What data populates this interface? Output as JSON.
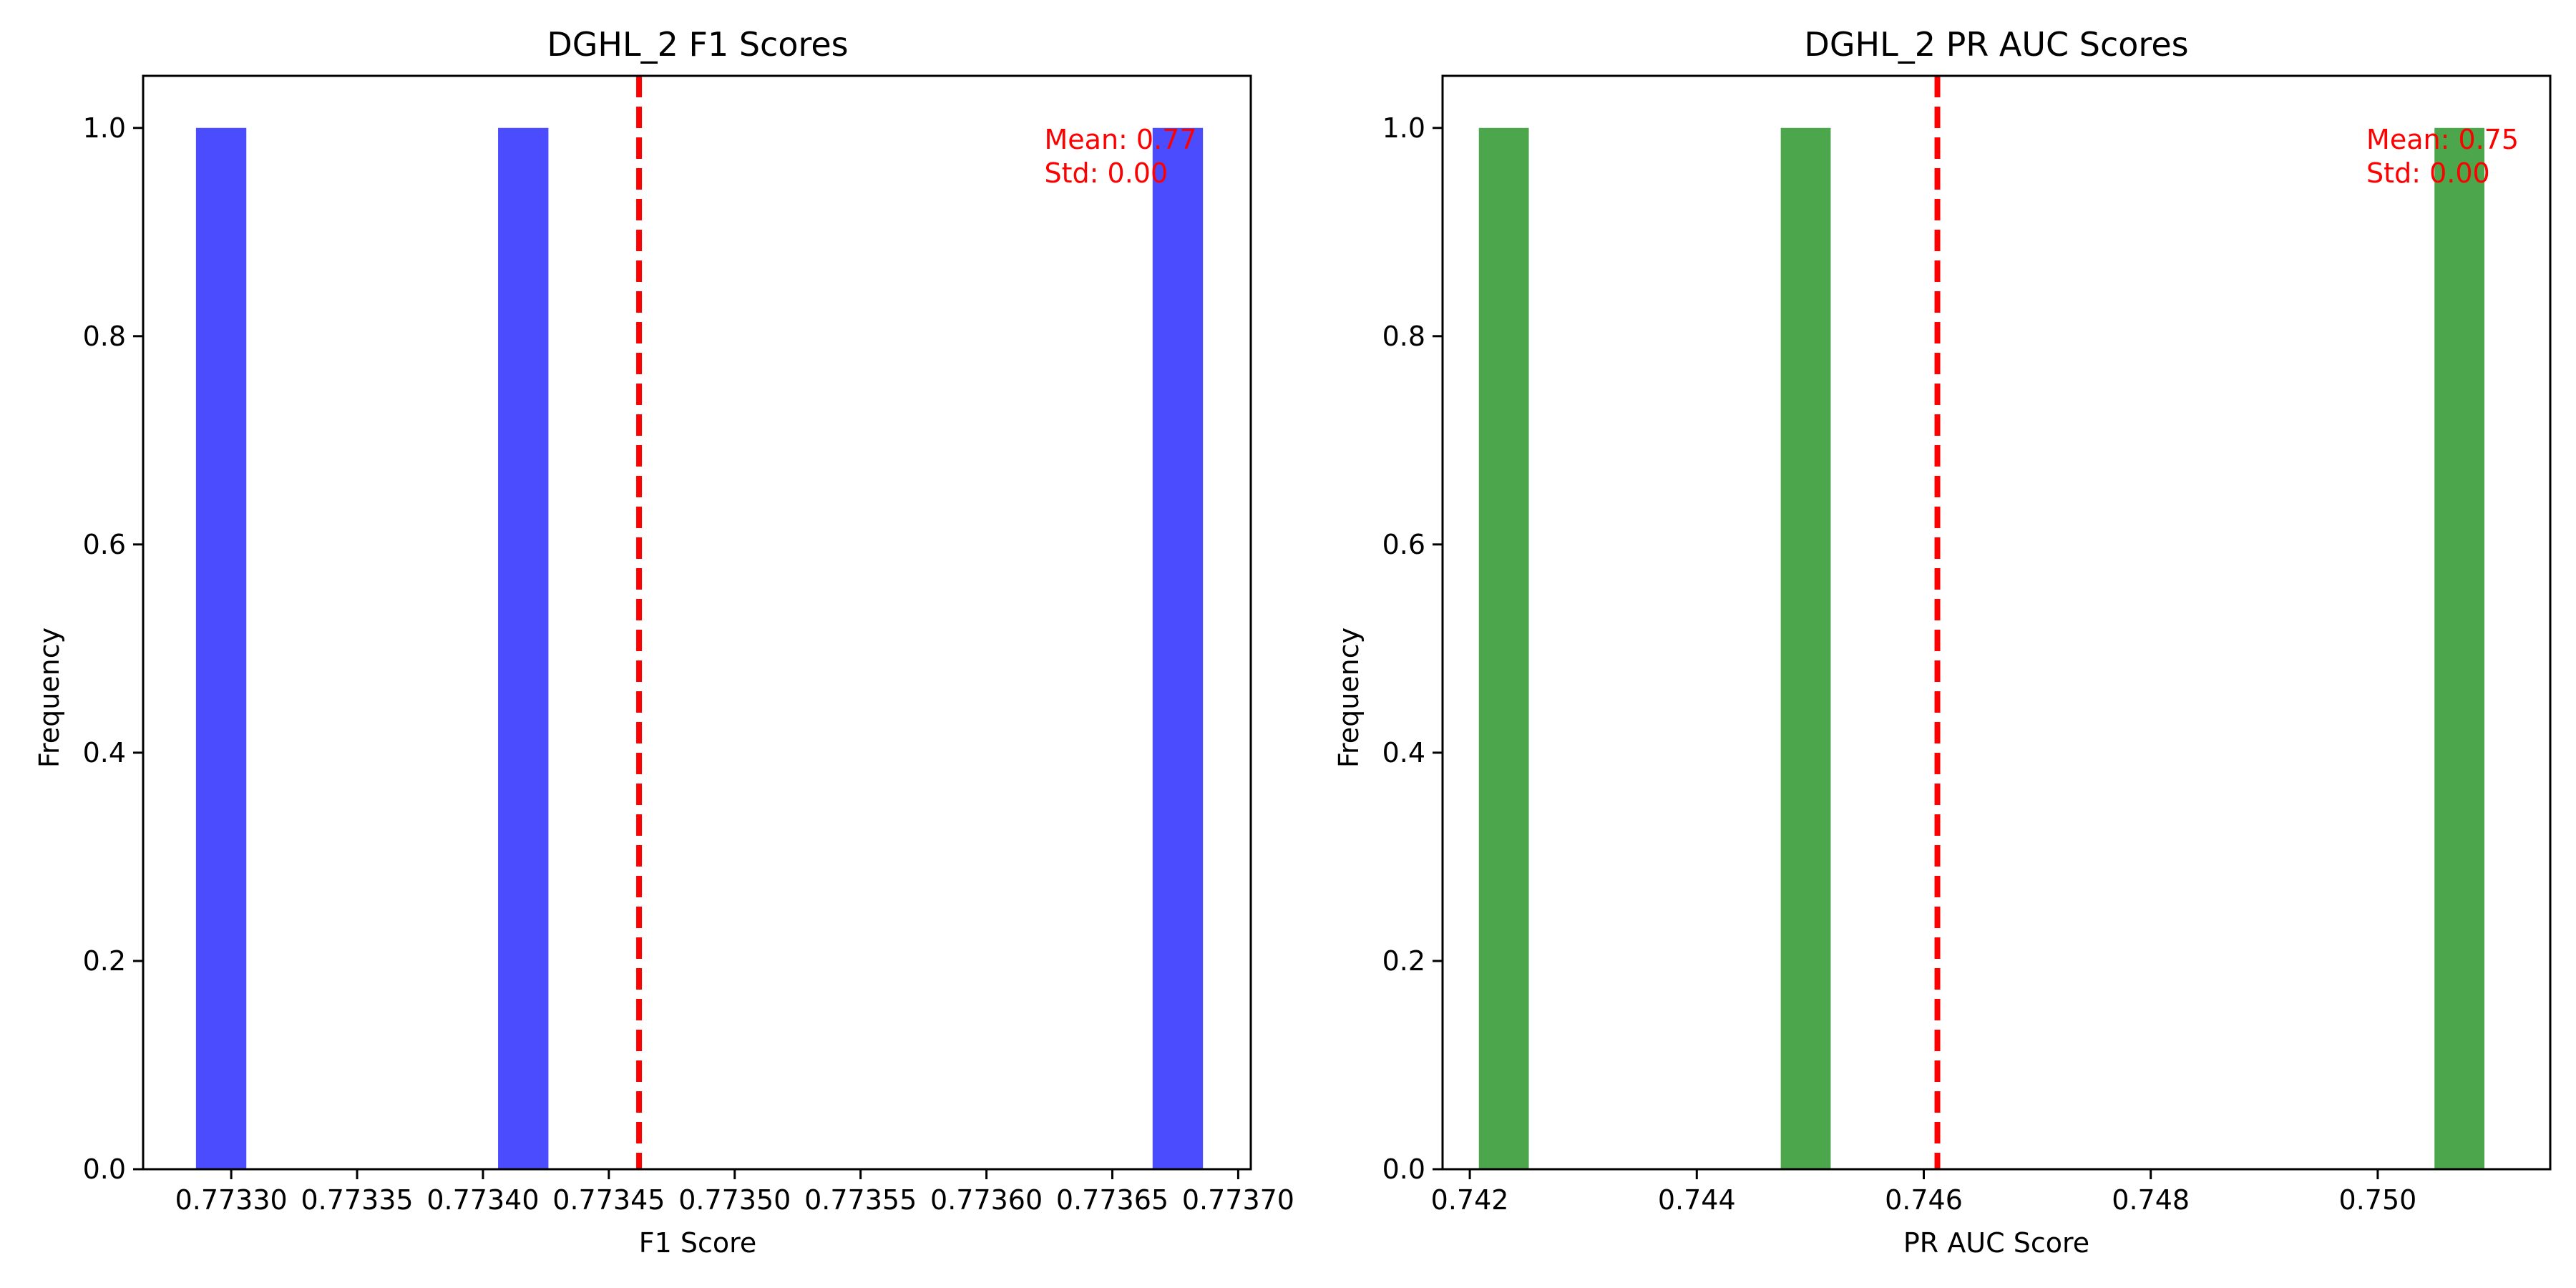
{
  "chart_data": [
    {
      "type": "bar",
      "title": "DGHL_2 F1 Scores",
      "xlabel": "F1 Score",
      "ylabel": "Frequency",
      "xlim": [
        0.773265,
        0.773705
      ],
      "ylim": [
        0,
        1.05
      ],
      "bar_color": "#4c4cff",
      "bins": [
        {
          "x0": 0.773286,
          "x1": 0.773306,
          "value": 1
        },
        {
          "x0": 0.773406,
          "x1": 0.773426,
          "value": 1
        },
        {
          "x0": 0.773666,
          "x1": 0.773686,
          "value": 1
        }
      ],
      "mean_line": {
        "x": 0.773462,
        "color": "#ff0000"
      },
      "annotation": {
        "lines": [
          "Mean: 0.77",
          "Std: 0.00"
        ],
        "color": "#ff0000",
        "at": [
          0.773623,
          0.98
        ]
      },
      "xticks": [
        {
          "value": 0.7733,
          "label": "0.77330"
        },
        {
          "value": 0.77335,
          "label": "0.77335"
        },
        {
          "value": 0.7734,
          "label": "0.77340"
        },
        {
          "value": 0.77345,
          "label": "0.77345"
        },
        {
          "value": 0.7735,
          "label": "0.77350"
        },
        {
          "value": 0.77355,
          "label": "0.77355"
        },
        {
          "value": 0.7736,
          "label": "0.77360"
        },
        {
          "value": 0.77365,
          "label": "0.77365"
        },
        {
          "value": 0.7737,
          "label": "0.77370"
        }
      ],
      "yticks": [
        {
          "value": 0,
          "label": "0.0"
        },
        {
          "value": 0.2,
          "label": "0.2"
        },
        {
          "value": 0.4,
          "label": "0.4"
        },
        {
          "value": 0.6,
          "label": "0.6"
        },
        {
          "value": 0.8,
          "label": "0.8"
        },
        {
          "value": 1.0,
          "label": "1.0"
        }
      ]
    },
    {
      "type": "bar",
      "title": "DGHL_2 PR AUC Scores",
      "xlabel": "PR AUC Score",
      "ylabel": "Frequency",
      "xlim": [
        0.74176,
        0.75152
      ],
      "ylim": [
        0,
        1.05
      ],
      "bar_color": "#4ca64c",
      "bins": [
        {
          "x0": 0.74208,
          "x1": 0.74252,
          "value": 1
        },
        {
          "x0": 0.74474,
          "x1": 0.74518,
          "value": 1
        },
        {
          "x0": 0.7505,
          "x1": 0.75094,
          "value": 1
        }
      ],
      "mean_line": {
        "x": 0.74612,
        "color": "#ff0000"
      },
      "annotation": {
        "lines": [
          "Mean: 0.75",
          "Std: 0.00"
        ],
        "color": "#ff0000",
        "at": [
          0.7499,
          0.98
        ]
      },
      "xticks": [
        {
          "value": 0.742,
          "label": "0.742"
        },
        {
          "value": 0.744,
          "label": "0.744"
        },
        {
          "value": 0.746,
          "label": "0.746"
        },
        {
          "value": 0.748,
          "label": "0.748"
        },
        {
          "value": 0.75,
          "label": "0.750"
        }
      ],
      "yticks": [
        {
          "value": 0,
          "label": "0.0"
        },
        {
          "value": 0.2,
          "label": "0.2"
        },
        {
          "value": 0.4,
          "label": "0.4"
        },
        {
          "value": 0.6,
          "label": "0.6"
        },
        {
          "value": 0.8,
          "label": "0.8"
        },
        {
          "value": 1.0,
          "label": "1.0"
        }
      ]
    }
  ]
}
